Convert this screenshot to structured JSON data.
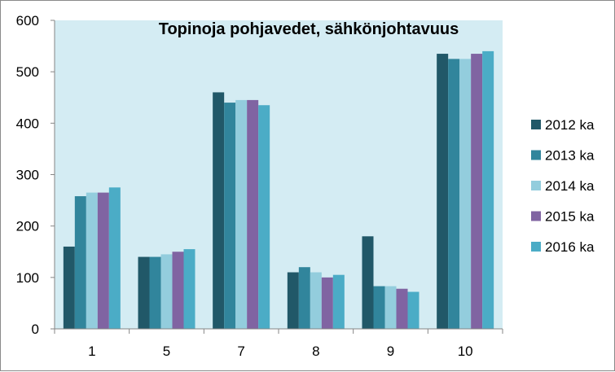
{
  "chart_data": {
    "type": "bar",
    "title": "Topinoja pohjavedet, sähkönjohtavuus",
    "xlabel": "",
    "ylabel": "",
    "categories": [
      "1",
      "5",
      "7",
      "8",
      "9",
      "10"
    ],
    "ylim": [
      0,
      600
    ],
    "yticks": [
      "0",
      "100",
      "200",
      "300",
      "400",
      "500",
      "600"
    ],
    "grid": false,
    "legend_position": "right",
    "plot_background": "#d4ecf3",
    "series": [
      {
        "name": "2012 ka",
        "color": "#215868",
        "values": [
          160,
          140,
          460,
          110,
          180,
          535
        ]
      },
      {
        "name": "2013 ka",
        "color": "#31859c",
        "values": [
          258,
          140,
          440,
          120,
          83,
          525
        ]
      },
      {
        "name": "2014 ka",
        "color": "#93cddd",
        "values": [
          265,
          145,
          445,
          110,
          83,
          525
        ]
      },
      {
        "name": "2015 ka",
        "color": "#8064a2",
        "values": [
          265,
          150,
          445,
          100,
          78,
          535
        ]
      },
      {
        "name": "2016 ka",
        "color": "#4bacc6",
        "values": [
          275,
          155,
          435,
          105,
          72,
          540
        ]
      }
    ]
  }
}
